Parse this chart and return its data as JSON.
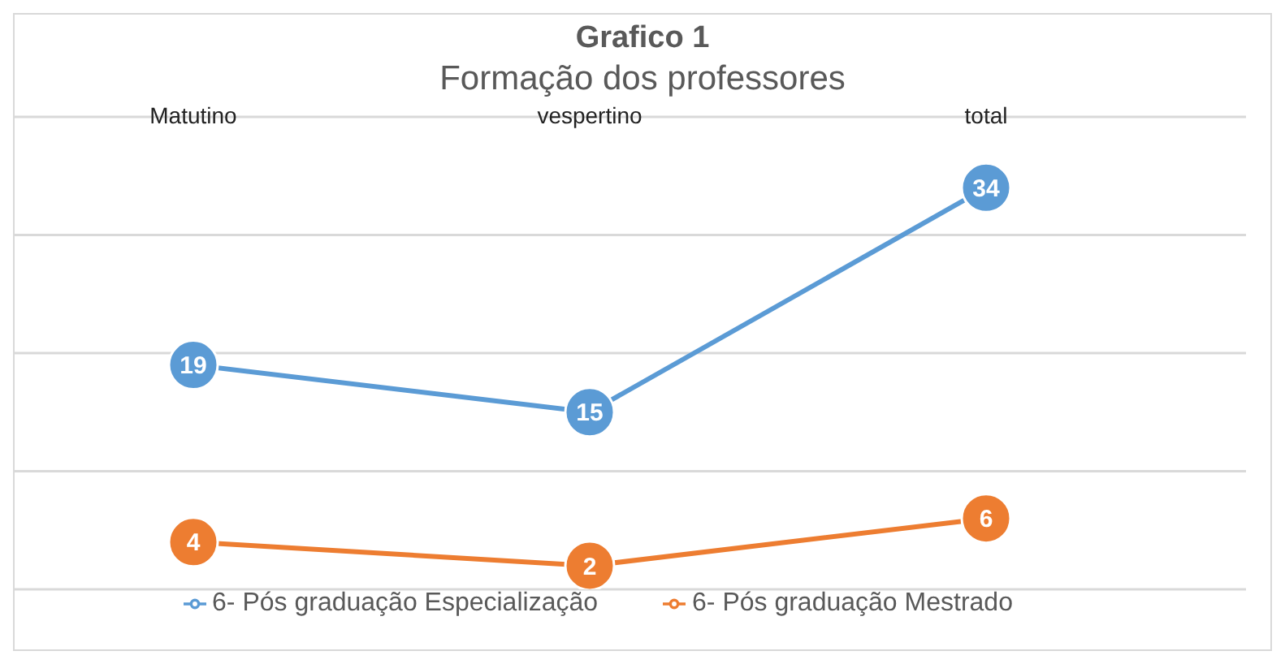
{
  "chart_data": {
    "type": "line",
    "title": "Grafico 1",
    "subtitle": "Formação dos professores",
    "categories": [
      "Matutino",
      "vespertino",
      "total"
    ],
    "series": [
      {
        "name": "6- Pós graduação Especialização",
        "color": "#5b9bd5",
        "values": [
          19,
          15,
          34
        ]
      },
      {
        "name": "6- Pós graduação Mestrado",
        "color": "#ed7d31",
        "values": [
          4,
          2,
          6
        ]
      }
    ],
    "ylim": [
      0,
      40
    ],
    "yticks": [
      {
        "value": 0,
        "label": null
      },
      {
        "value": 10,
        "label": null
      },
      {
        "value": 20,
        "label": null
      },
      {
        "value": 30,
        "label": null
      },
      {
        "value": 40,
        "label": null
      }
    ],
    "grid": "y",
    "tick_labels": "x",
    "legend": "bottom",
    "marker": "circle",
    "line_style": "solid",
    "data_labels": true
  }
}
